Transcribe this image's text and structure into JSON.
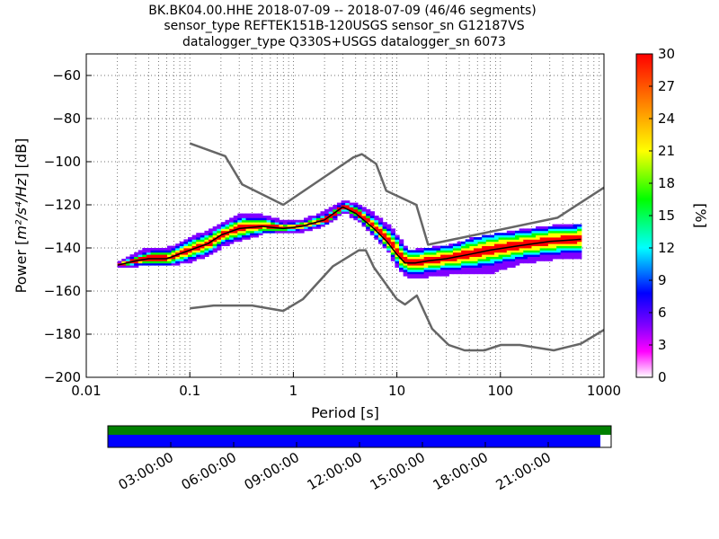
{
  "title": {
    "line1": "BK.BK04.00.HHE   2018-07-09 -- 2018-07-09  (46/46 segments)",
    "line2": "sensor_type REFTEK151B-120USGS sensor_sn G12187VS",
    "line3": "datalogger_type Q330S+USGS datalogger_sn 6073"
  },
  "chart_data": {
    "type": "heatmap",
    "xlabel": "Period [s]",
    "ylabel_prefix": "Power [",
    "ylabel_units": "m²/s⁴/Hz",
    "ylabel_suffix": "] [dB]",
    "x_scale": "log",
    "xlim": [
      0.01,
      1000
    ],
    "ylim": [
      -200,
      -50
    ],
    "x_ticks": [
      0.01,
      0.1,
      1,
      10,
      100,
      1000
    ],
    "x_tick_labels": [
      "0.01",
      "0.1",
      "1",
      "10",
      "100",
      "1000"
    ],
    "y_ticks": [
      -200,
      -180,
      -160,
      -140,
      -120,
      -100,
      -80,
      -60
    ],
    "grid": true,
    "colorbar": {
      "label": "[%]",
      "range": [
        0,
        30
      ],
      "ticks": [
        0,
        3,
        6,
        9,
        12,
        15,
        18,
        21,
        24,
        27,
        30
      ],
      "colors": [
        "#ffffff",
        "#ff00ff",
        "#8000ff",
        "#0000ff",
        "#00ffff",
        "#00ff00",
        "#ffff00",
        "#ff8000",
        "#ff0000"
      ]
    },
    "series": [
      {
        "kind": "high-noise-model",
        "color": "#666666",
        "x": [
          0.1,
          0.22,
          0.32,
          0.8,
          3.8,
          4.6,
          6.3,
          7.9,
          15.4,
          20,
          354.8,
          1000
        ],
        "y": [
          -91.5,
          -97.4,
          -110.5,
          -120,
          -98,
          -96.5,
          -101,
          -113.5,
          -120,
          -138.5,
          -126,
          -112
        ]
      },
      {
        "kind": "low-noise-model",
        "color": "#666666",
        "x": [
          0.1,
          0.17,
          0.4,
          0.8,
          1.24,
          2.4,
          4.3,
          5,
          6,
          10,
          12,
          15.6,
          21.9,
          31.6,
          45,
          70,
          101,
          154,
          328,
          600,
          1000
        ],
        "y": [
          -168,
          -166.7,
          -166.7,
          -169.2,
          -163.7,
          -148.6,
          -141.1,
          -141.1,
          -149,
          -163.8,
          -166.2,
          -162.1,
          -177.5,
          -185,
          -187.5,
          -187.5,
          -185,
          -185,
          -187.5,
          -184.4,
          -178
        ]
      },
      {
        "kind": "mean-psd",
        "color": "#000000",
        "x": [
          0.02,
          0.03,
          0.04,
          0.06,
          0.1,
          0.15,
          0.2,
          0.3,
          0.5,
          0.8,
          1.2,
          2,
          3,
          4,
          6,
          8,
          10,
          12,
          15,
          20,
          30,
          50,
          80,
          150,
          300,
          600
        ],
        "y": [
          -148,
          -146,
          -145,
          -145,
          -141,
          -138,
          -134,
          -131,
          -130,
          -131,
          -130,
          -127,
          -121,
          -124,
          -131,
          -137,
          -143,
          -147,
          -147,
          -146,
          -145,
          -143,
          -141,
          -139,
          -137,
          -136
        ]
      },
      {
        "kind": "psd-upper-edge",
        "x": [
          0.02,
          0.03,
          0.04,
          0.06,
          0.1,
          0.15,
          0.2,
          0.3,
          0.5,
          0.8,
          1.2,
          2,
          3,
          4,
          6,
          8,
          10,
          12,
          15,
          20,
          30,
          50,
          80,
          150,
          300,
          600
        ],
        "y": [
          -147,
          -143,
          -141,
          -141,
          -136,
          -133,
          -130,
          -125,
          -126,
          -129,
          -128,
          -124,
          -119,
          -121,
          -126,
          -131,
          -136,
          -142,
          -142,
          -141,
          -140,
          -137,
          -135,
          -133,
          -131,
          -130
        ]
      },
      {
        "kind": "psd-lower-edge",
        "x": [
          0.02,
          0.03,
          0.04,
          0.06,
          0.1,
          0.15,
          0.2,
          0.3,
          0.5,
          0.8,
          1.2,
          2,
          3,
          4,
          6,
          8,
          10,
          12,
          15,
          20,
          30,
          50,
          80,
          150,
          300,
          600
        ],
        "y": [
          -149,
          -148,
          -148,
          -148,
          -146,
          -143,
          -139,
          -136,
          -133,
          -133,
          -132,
          -129,
          -123,
          -127,
          -135,
          -142,
          -150,
          -153,
          -154,
          -153,
          -152,
          -152,
          -151,
          -147,
          -145,
          -144
        ]
      }
    ]
  },
  "coverage": {
    "time_labels": [
      "03:00:00",
      "06:00:00",
      "09:00:00",
      "12:00:00",
      "15:00:00",
      "18:00:00",
      "21:00:00"
    ],
    "data_color": "#008000",
    "psd_color": "#0000ff"
  }
}
